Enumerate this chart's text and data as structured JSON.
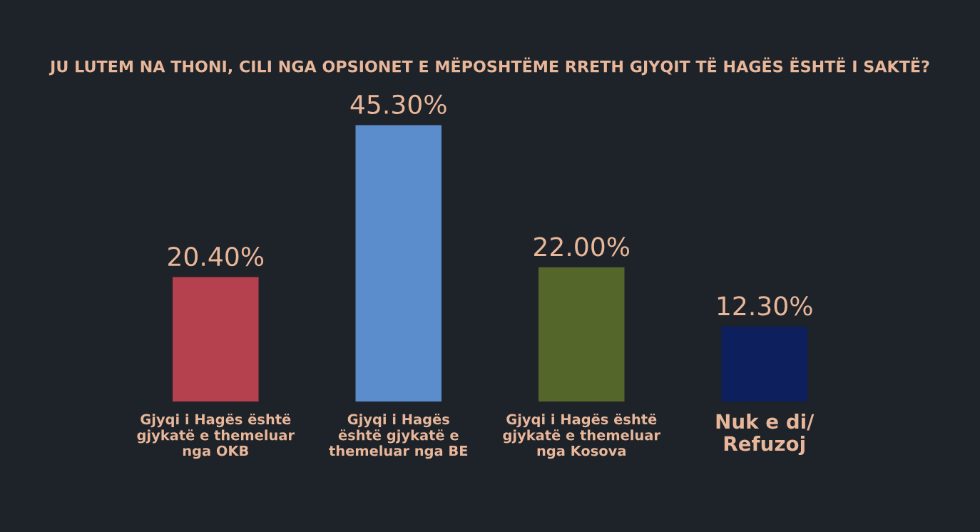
{
  "chart_data": {
    "type": "bar",
    "title": "JU LUTEM NA THONI, CILI NGA OPSIONET E MËPOSHTËME RRETH GJYQIT TË HAGËS ËSHTË I SAKTË?",
    "categories": [
      "Gjyqi i Hagës është\ngjykatë e themeluar\nnga OKB",
      "Gjyqi i Hagës\nështë gjykatë e\nthemeluar nga BE",
      "Gjyqi i Hagës është\ngjykatë e themeluar\nnga Kosova",
      "Nuk e di/\nRefuzoj"
    ],
    "values": [
      20.4,
      45.3,
      22.0,
      12.3
    ],
    "colors": [
      "#b5404e",
      "#5b8ccc",
      "#55662a",
      "#0d1f5c"
    ],
    "value_labels": [
      "20.40%",
      "45.30%",
      "22.00%",
      "12.30%"
    ],
    "grid": false,
    "legend": false
  }
}
